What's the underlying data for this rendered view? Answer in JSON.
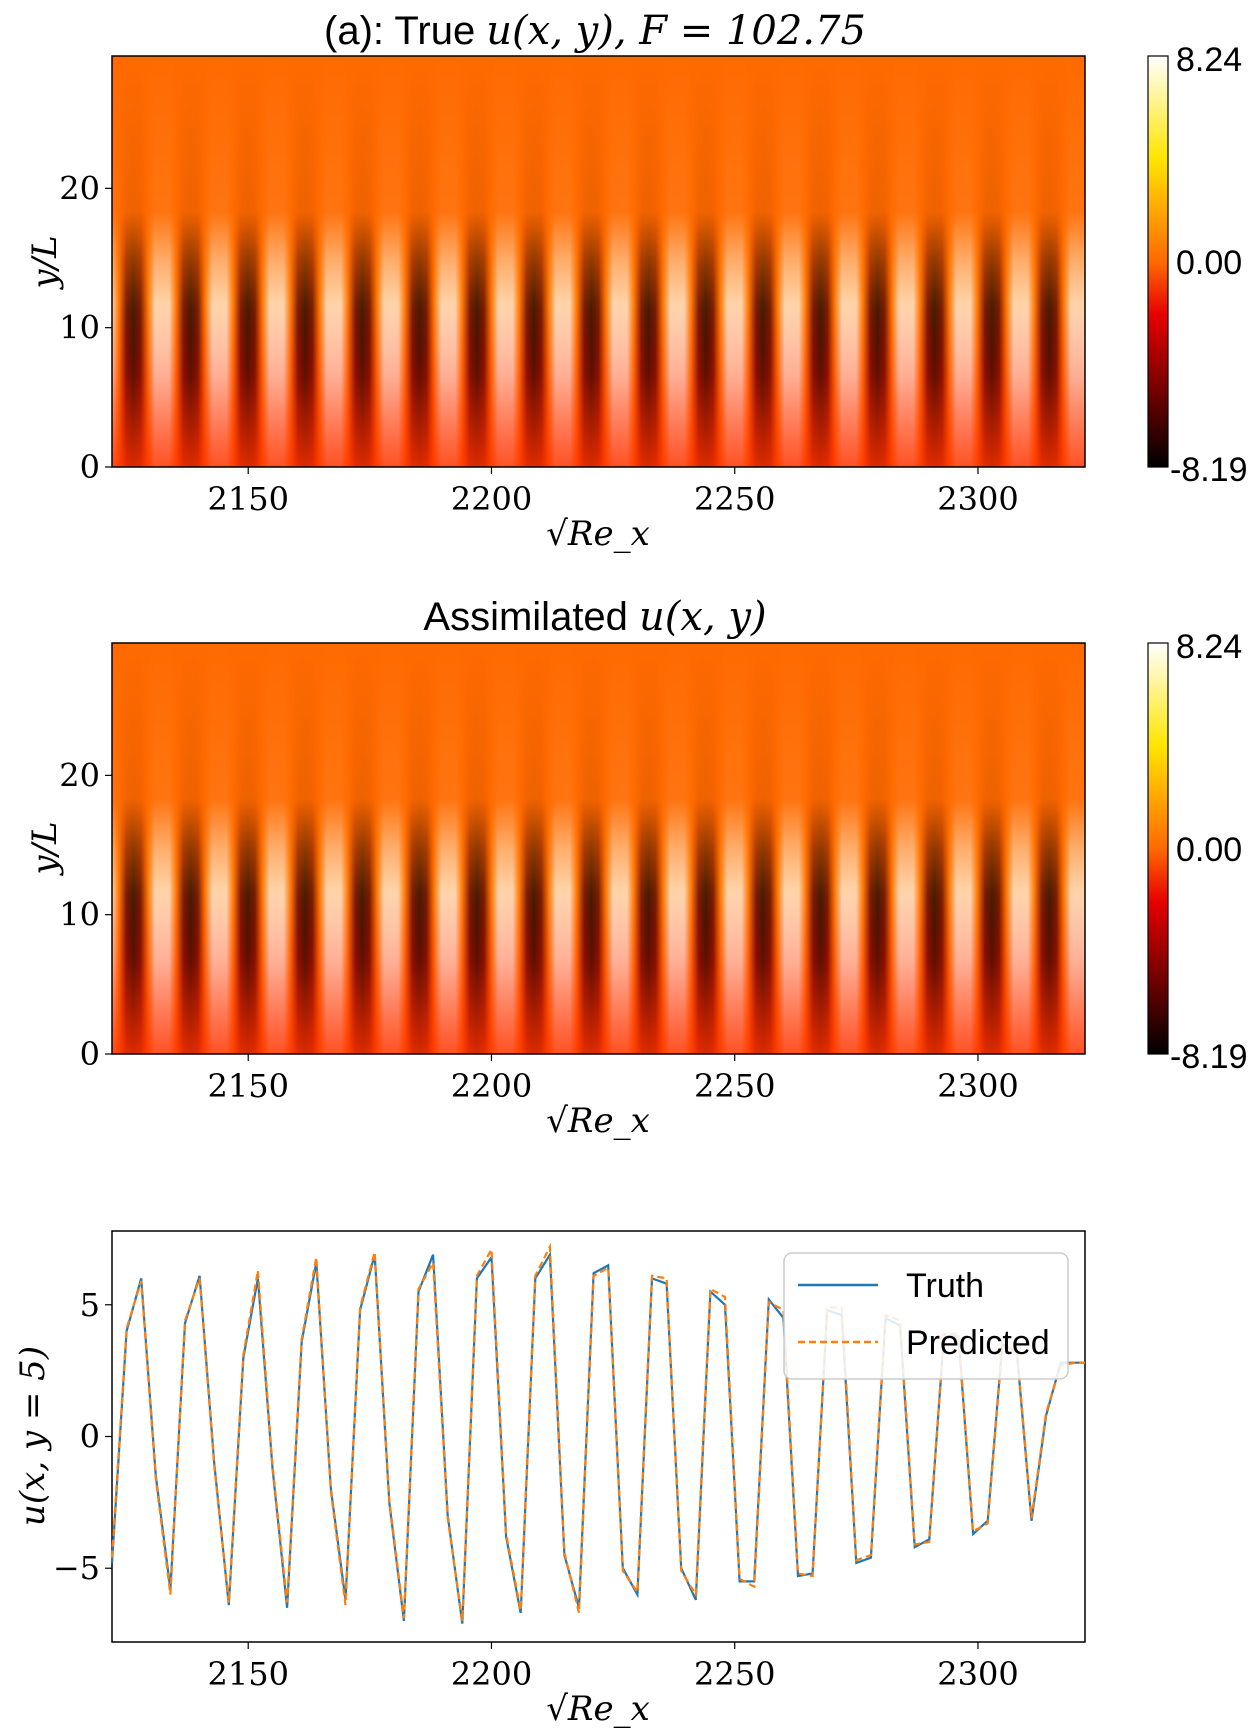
{
  "chart_data": [
    {
      "type": "heatmap",
      "title": "(a): True u(x, y), F = 102.75",
      "title_prefix": "(a): True ",
      "title_math": "u(x, y), F = 102.75",
      "xlabel": "√Re_x",
      "ylabel": "y/L",
      "xlim": [
        2122,
        2322
      ],
      "ylim": [
        0,
        29.5
      ],
      "xticks": [
        "2150",
        "2200",
        "2250",
        "2300"
      ],
      "yticks": [
        "0",
        "10",
        "20"
      ],
      "colormap": "hot",
      "colorbar": {
        "min": -8.19,
        "max": 8.24,
        "ticks": [
          "8.24",
          "0.00",
          "-8.19"
        ]
      }
    },
    {
      "type": "heatmap",
      "title": "Assimilated u(x, y)",
      "title_prefix": "Assimilated ",
      "title_math": "u(x, y)",
      "xlabel": "√Re_x",
      "ylabel": "y/L",
      "xlim": [
        2122,
        2322
      ],
      "ylim": [
        0,
        29.5
      ],
      "xticks": [
        "2150",
        "2200",
        "2250",
        "2300"
      ],
      "yticks": [
        "0",
        "10",
        "20"
      ],
      "colormap": "hot",
      "colorbar": {
        "min": -8.19,
        "max": 8.24,
        "ticks": [
          "8.24",
          "0.00",
          "-8.19"
        ]
      }
    },
    {
      "type": "line",
      "xlabel": "√Re_x",
      "ylabel": "u(x, y = 5)",
      "xlim": [
        2122,
        2322
      ],
      "ylim": [
        -7.8,
        7.8
      ],
      "xticks": [
        "2150",
        "2200",
        "2250",
        "2300"
      ],
      "yticks": [
        "5",
        "0",
        "−5"
      ],
      "legend_position": "top-right",
      "series": [
        {
          "name": "Truth",
          "color": "#1f77b4",
          "style": "solid",
          "x": [
            2122,
            2125,
            2128,
            2131,
            2134,
            2137,
            2140,
            2143,
            2146,
            2149,
            2152,
            2155,
            2158,
            2161,
            2164,
            2167,
            2170,
            2173,
            2176,
            2179,
            2182,
            2185,
            2188,
            2191,
            2194,
            2197,
            2200,
            2203,
            2206,
            2209,
            2212,
            2215,
            2218,
            2221,
            2224,
            2227,
            2230,
            2233,
            2236,
            2239,
            2242,
            2245,
            2248,
            2251,
            2254,
            2257,
            2260,
            2263,
            2266,
            2269,
            2272,
            2275,
            2278,
            2281,
            2284,
            2287,
            2290,
            2293,
            2296,
            2299,
            2302,
            2305,
            2308,
            2311,
            2314,
            2317,
            2320,
            2322
          ],
          "y": [
            -4.8,
            4.0,
            6.0,
            -1.5,
            -5.8,
            4.3,
            6.1,
            -1.0,
            -6.4,
            3.0,
            6.0,
            -1.2,
            -6.5,
            3.6,
            6.6,
            -2.0,
            -6.2,
            4.8,
            6.9,
            -2.5,
            -7.0,
            5.5,
            6.9,
            -3.0,
            -7.1,
            6.0,
            6.8,
            -3.8,
            -6.7,
            6.0,
            6.9,
            -4.5,
            -6.5,
            6.2,
            6.5,
            -5.0,
            -6.0,
            6.0,
            5.8,
            -5.0,
            -6.2,
            5.5,
            5.0,
            -5.5,
            -5.5,
            5.2,
            4.5,
            -5.3,
            -5.2,
            4.8,
            4.6,
            -4.8,
            -4.6,
            4.5,
            4.2,
            -4.2,
            -3.9,
            3.8,
            3.8,
            -3.7,
            -3.2,
            3.5,
            3.2,
            -3.2,
            0.8,
            2.8,
            2.8,
            2.8
          ]
        },
        {
          "name": "Predicted",
          "color": "#ff7f0e",
          "style": "dashed",
          "x": [
            2122,
            2125,
            2128,
            2131,
            2134,
            2137,
            2140,
            2143,
            2146,
            2149,
            2152,
            2155,
            2158,
            2161,
            2164,
            2167,
            2170,
            2173,
            2176,
            2179,
            2182,
            2185,
            2188,
            2191,
            2194,
            2197,
            2200,
            2203,
            2206,
            2209,
            2212,
            2215,
            2218,
            2221,
            2224,
            2227,
            2230,
            2233,
            2236,
            2239,
            2242,
            2245,
            2248,
            2251,
            2254,
            2257,
            2260,
            2263,
            2266,
            2269,
            2272,
            2275,
            2278,
            2281,
            2284,
            2287,
            2290,
            2293,
            2296,
            2299,
            2302,
            2305,
            2308,
            2311,
            2314,
            2317,
            2320,
            2322
          ],
          "y": [
            -4.6,
            4.1,
            5.9,
            -1.6,
            -6.0,
            4.4,
            6.0,
            -1.1,
            -6.3,
            3.1,
            6.3,
            -1.1,
            -6.3,
            3.7,
            6.8,
            -2.1,
            -6.4,
            4.9,
            7.0,
            -2.4,
            -6.9,
            5.6,
            6.6,
            -3.1,
            -7.0,
            6.1,
            7.1,
            -3.7,
            -6.6,
            6.1,
            7.2,
            -4.4,
            -6.7,
            6.1,
            6.4,
            -5.1,
            -5.9,
            6.1,
            6.0,
            -5.1,
            -6.0,
            5.6,
            5.3,
            -5.4,
            -5.7,
            5.1,
            4.8,
            -5.2,
            -5.3,
            4.9,
            4.9,
            -4.7,
            -4.5,
            4.6,
            4.4,
            -4.1,
            -4.0,
            3.9,
            3.9,
            -3.6,
            -3.3,
            3.4,
            3.3,
            -3.1,
            0.9,
            2.7,
            2.8,
            2.8
          ]
        }
      ]
    }
  ]
}
